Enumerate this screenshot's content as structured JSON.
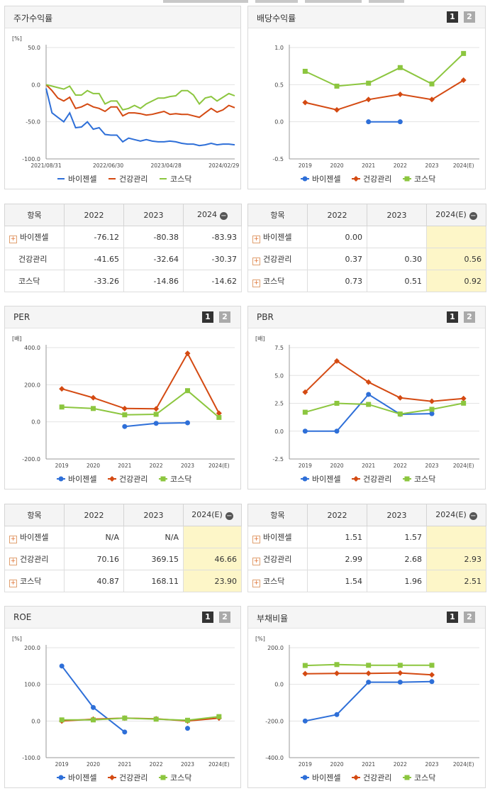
{
  "colors": {
    "bio": "#2e6fd8",
    "health": "#d44a12",
    "kosdaq": "#8cc63f"
  },
  "legend": [
    "바이젠셀",
    "건강관리",
    "코스닥"
  ],
  "panels": {
    "stock": {
      "title": "주가수익률"
    },
    "div": {
      "title": "배당수익률",
      "btn1": "1",
      "btn2": "2"
    },
    "per": {
      "title": "PER",
      "btn1": "1",
      "btn2": "2"
    },
    "pbr": {
      "title": "PBR",
      "btn1": "1",
      "btn2": "2"
    },
    "roe": {
      "title": "ROE",
      "btn1": "1",
      "btn2": "2"
    },
    "debt": {
      "title": "부채비율",
      "btn1": "1",
      "btn2": "2"
    }
  },
  "chart_data": [
    {
      "id": "stock",
      "type": "line",
      "unit": "[%]",
      "ylim": [
        -100,
        50
      ],
      "yticks": [
        "50.0",
        "0.0",
        "-50.0",
        "-100.0"
      ],
      "ytick_values": [
        50,
        0,
        -50,
        -100
      ],
      "xticks": [
        "2021/08/31",
        "2022/06/30",
        "2023/04/28",
        "2024/02/29"
      ],
      "series": [
        {
          "name": "바이젠셀",
          "values": [
            -5,
            -38,
            -44,
            -50,
            -38,
            -58,
            -57,
            -50,
            -60,
            -58,
            -67,
            -68,
            -68,
            -77,
            -72,
            -74,
            -76,
            -74,
            -76,
            -77,
            -77,
            -76,
            -77,
            -79,
            -80,
            -80,
            -82,
            -81,
            -79,
            -81,
            -80,
            -80,
            -81
          ]
        },
        {
          "name": "건강관리",
          "values": [
            0,
            -8,
            -18,
            -22,
            -17,
            -32,
            -30,
            -26,
            -30,
            -32,
            -36,
            -30,
            -30,
            -42,
            -38,
            -38,
            -39,
            -41,
            -40,
            -38,
            -36,
            -40,
            -39,
            -40,
            -40,
            -42,
            -44,
            -38,
            -32,
            -37,
            -34,
            -28,
            -31
          ]
        },
        {
          "name": "코스닥",
          "values": [
            0,
            -2,
            -4,
            -6,
            -2,
            -14,
            -14,
            -8,
            -12,
            -12,
            -26,
            -22,
            -22,
            -34,
            -32,
            -28,
            -32,
            -26,
            -22,
            -18,
            -18,
            -16,
            -15,
            -8,
            -8,
            -14,
            -26,
            -18,
            -16,
            -22,
            -17,
            -12,
            -15
          ]
        }
      ]
    },
    {
      "id": "div",
      "type": "line",
      "unit": "",
      "ylim": [
        -0.5,
        1.0
      ],
      "yticks": [
        "1.0",
        "0.5",
        "0.0",
        "-0.5"
      ],
      "ytick_values": [
        1.0,
        0.5,
        0.0,
        -0.5
      ],
      "xticks": [
        "2019",
        "2020",
        "2021",
        "2022",
        "2023",
        "2024(E)"
      ],
      "series": [
        {
          "name": "바이젠셀",
          "values": [
            null,
            null,
            0.0,
            0.0,
            null,
            null
          ]
        },
        {
          "name": "건강관리",
          "values": [
            0.26,
            0.16,
            0.3,
            0.37,
            0.3,
            0.56
          ]
        },
        {
          "name": "코스닥",
          "values": [
            0.68,
            0.48,
            0.52,
            0.73,
            0.51,
            0.92
          ]
        }
      ]
    },
    {
      "id": "per",
      "type": "line",
      "unit": "[배]",
      "ylim": [
        -200,
        400
      ],
      "yticks": [
        "400.0",
        "200.0",
        "0.0",
        "-200.0"
      ],
      "ytick_values": [
        400,
        200,
        0,
        -200
      ],
      "xticks": [
        "2019",
        "2020",
        "2021",
        "2022",
        "2023",
        "2024(E)"
      ],
      "series": [
        {
          "name": "바이젠셀",
          "values": [
            null,
            null,
            -25,
            -8,
            -5,
            null
          ]
        },
        {
          "name": "건강관리",
          "values": [
            178,
            130,
            72,
            70.16,
            369.15,
            46.66
          ]
        },
        {
          "name": "코스닥",
          "values": [
            80,
            72,
            38,
            40.87,
            168.11,
            23.9
          ]
        }
      ]
    },
    {
      "id": "pbr",
      "type": "line",
      "unit": "[배]",
      "ylim": [
        -2.5,
        7.5
      ],
      "yticks": [
        "7.5",
        "5.0",
        "2.5",
        "0.0",
        "-2.5"
      ],
      "ytick_values": [
        7.5,
        5.0,
        2.5,
        0.0,
        -2.5
      ],
      "xticks": [
        "2019",
        "2020",
        "2021",
        "2022",
        "2023",
        "2024(E)"
      ],
      "series": [
        {
          "name": "바이젠셀",
          "values": [
            0.0,
            0.0,
            3.3,
            1.51,
            1.57,
            null
          ]
        },
        {
          "name": "건강관리",
          "values": [
            3.5,
            6.3,
            4.4,
            2.99,
            2.68,
            2.93
          ]
        },
        {
          "name": "코스닥",
          "values": [
            1.7,
            2.5,
            2.4,
            1.54,
            1.96,
            2.51
          ]
        }
      ]
    },
    {
      "id": "roe",
      "type": "line",
      "unit": "[%]",
      "ylim": [
        -100,
        200
      ],
      "yticks": [
        "200.0",
        "100.0",
        "0.0",
        "-100.0"
      ],
      "ytick_values": [
        200,
        100,
        0,
        -100
      ],
      "xticks": [
        "2019",
        "2020",
        "2021",
        "2022",
        "2023",
        "2024(E)"
      ],
      "series": [
        {
          "name": "바이젠셀",
          "values": [
            150,
            37,
            -30,
            null,
            -20,
            null
          ]
        },
        {
          "name": "건강관리",
          "values": [
            0,
            5,
            8,
            6,
            0,
            8
          ]
        },
        {
          "name": "코스닥",
          "values": [
            3,
            3,
            8,
            5,
            2,
            12
          ]
        }
      ]
    },
    {
      "id": "debt",
      "type": "line",
      "unit": "[%]",
      "ylim": [
        -400,
        200
      ],
      "yticks": [
        "200.0",
        "0.0",
        "-200.0",
        "-400.0"
      ],
      "ytick_values": [
        200,
        0,
        -200,
        -400
      ],
      "xticks": [
        "2019",
        "2020",
        "2021",
        "2022",
        "2023",
        "2024(E)"
      ],
      "series": [
        {
          "name": "바이젠셀",
          "values": [
            -200,
            -165,
            12,
            12,
            15,
            null
          ]
        },
        {
          "name": "건강관리",
          "values": [
            58,
            60,
            60,
            62,
            52,
            null
          ]
        },
        {
          "name": "코스닥",
          "values": [
            103,
            108,
            104,
            104,
            104,
            null
          ]
        }
      ]
    }
  ],
  "tables": {
    "stock": {
      "header": [
        "항목",
        "2022",
        "2023",
        "2024"
      ],
      "rows": [
        {
          "label": "바이젠셀",
          "plus": true,
          "values": [
            "-76.12",
            "-80.38",
            "-83.93"
          ]
        },
        {
          "label": "건강관리",
          "plus": false,
          "values": [
            "-41.65",
            "-32.64",
            "-30.37"
          ]
        },
        {
          "label": "코스닥",
          "plus": false,
          "values": [
            "-33.26",
            "-14.86",
            "-14.62"
          ]
        }
      ]
    },
    "div": {
      "header": [
        "항목",
        "2022",
        "2023",
        "2024(E)"
      ],
      "rows": [
        {
          "label": "바이젠셀",
          "plus": true,
          "values": [
            "0.00",
            "",
            ""
          ]
        },
        {
          "label": "건강관리",
          "plus": true,
          "values": [
            "0.37",
            "0.30",
            "0.56"
          ]
        },
        {
          "label": "코스닥",
          "plus": true,
          "values": [
            "0.73",
            "0.51",
            "0.92"
          ]
        }
      ]
    },
    "per": {
      "header": [
        "항목",
        "2022",
        "2023",
        "2024(E)"
      ],
      "rows": [
        {
          "label": "바이젠셀",
          "plus": true,
          "values": [
            "N/A",
            "N/A",
            ""
          ]
        },
        {
          "label": "건강관리",
          "plus": true,
          "values": [
            "70.16",
            "369.15",
            "46.66"
          ]
        },
        {
          "label": "코스닥",
          "plus": true,
          "values": [
            "40.87",
            "168.11",
            "23.90"
          ]
        }
      ]
    },
    "pbr": {
      "header": [
        "항목",
        "2022",
        "2023",
        "2024(E)"
      ],
      "rows": [
        {
          "label": "바이젠셀",
          "plus": true,
          "values": [
            "1.51",
            "1.57",
            ""
          ]
        },
        {
          "label": "건강관리",
          "plus": true,
          "values": [
            "2.99",
            "2.68",
            "2.93"
          ]
        },
        {
          "label": "코스닥",
          "plus": true,
          "values": [
            "1.54",
            "1.96",
            "2.51"
          ]
        }
      ]
    }
  }
}
